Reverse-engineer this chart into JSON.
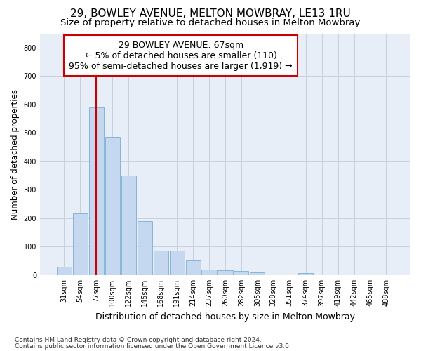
{
  "title1": "29, BOWLEY AVENUE, MELTON MOWBRAY, LE13 1RU",
  "title2": "Size of property relative to detached houses in Melton Mowbray",
  "xlabel": "Distribution of detached houses by size in Melton Mowbray",
  "ylabel": "Number of detached properties",
  "annotation_title": "29 BOWLEY AVENUE: 67sqm",
  "annotation_line1": "← 5% of detached houses are smaller (110)",
  "annotation_line2": "95% of semi-detached houses are larger (1,919) →",
  "footer1": "Contains HM Land Registry data © Crown copyright and database right 2024.",
  "footer2": "Contains public sector information licensed under the Open Government Licence v3.0.",
  "bar_color": "#c5d8f0",
  "bar_edge_color": "#7bafd4",
  "vline_color": "#cc0000",
  "grid_color": "#c8d0dc",
  "bg_color": "#e8eef8",
  "categories": [
    "31sqm",
    "54sqm",
    "77sqm",
    "100sqm",
    "122sqm",
    "145sqm",
    "168sqm",
    "191sqm",
    "214sqm",
    "237sqm",
    "260sqm",
    "282sqm",
    "305sqm",
    "328sqm",
    "351sqm",
    "374sqm",
    "397sqm",
    "419sqm",
    "442sqm",
    "465sqm",
    "488sqm"
  ],
  "values": [
    30,
    218,
    590,
    487,
    350,
    190,
    85,
    85,
    52,
    20,
    17,
    15,
    10,
    0,
    0,
    8,
    0,
    0,
    0,
    0,
    0
  ],
  "ylim": [
    0,
    850
  ],
  "yticks": [
    0,
    100,
    200,
    300,
    400,
    500,
    600,
    700,
    800
  ],
  "vline_x": 2.0,
  "title1_fontsize": 11,
  "title2_fontsize": 9.5,
  "annotation_fontsize": 9,
  "xlabel_fontsize": 9,
  "ylabel_fontsize": 8.5,
  "tick_fontsize": 7,
  "footer_fontsize": 6.5
}
